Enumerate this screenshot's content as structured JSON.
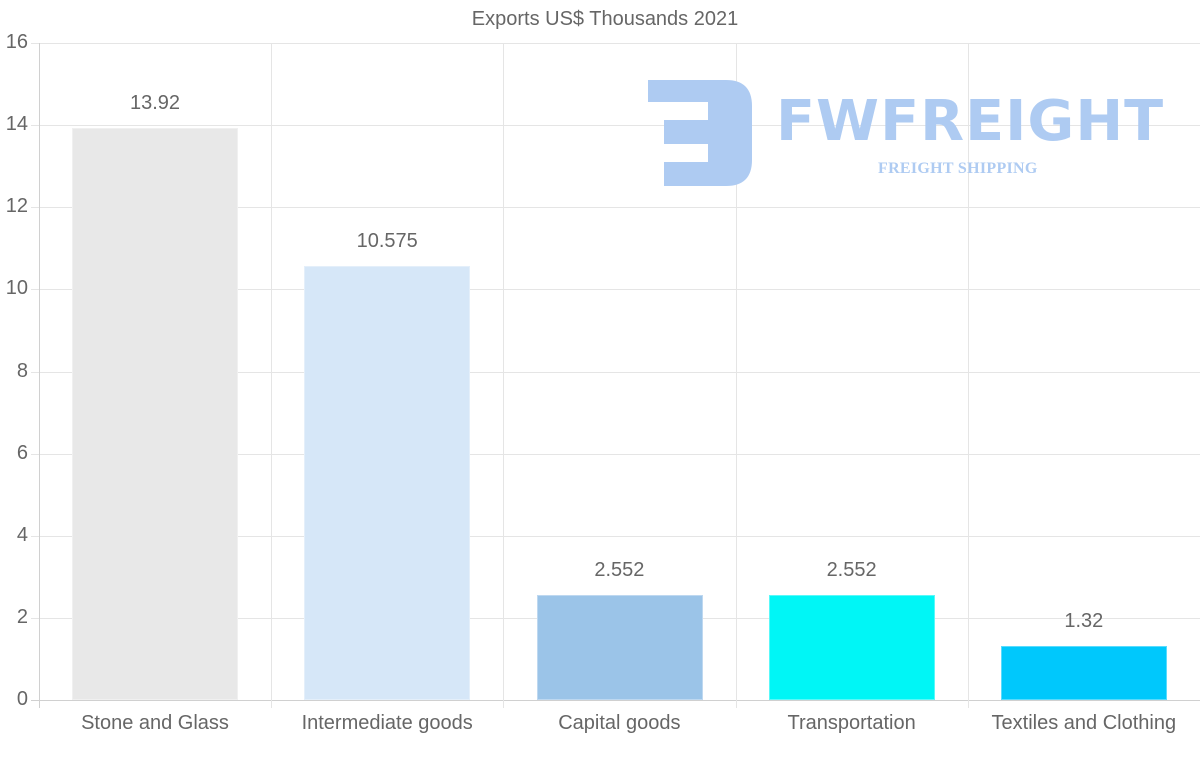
{
  "chart_data": {
    "type": "bar",
    "title": "Exports US$ Thousands 2021",
    "categories": [
      "Stone and Glass",
      "Intermediate goods",
      "Capital goods",
      "Transportation",
      "Textiles and Clothing"
    ],
    "values": [
      13.92,
      10.575,
      2.552,
      2.552,
      1.32
    ],
    "value_labels": [
      "13.92",
      "10.575",
      "2.552",
      "2.552",
      "1.32"
    ],
    "colors": [
      "#e8e8e8",
      "#d6e7f8",
      "#9bc4e8",
      "#00f6f6",
      "#00c8fc"
    ],
    "xlabel": "",
    "ylabel": "",
    "ylim": [
      0,
      16
    ],
    "yticks": [
      "0",
      "2",
      "4",
      "6",
      "8",
      "10",
      "12",
      "14",
      "16"
    ],
    "grid": true,
    "legend": "none"
  },
  "watermark": {
    "brand": "FWFREIGHT",
    "tagline": "FREIGHT SHIPPING",
    "color": "#aecbf2"
  }
}
